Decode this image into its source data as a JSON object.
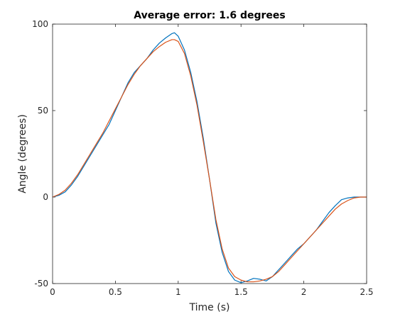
{
  "chart_data": {
    "type": "line",
    "title": "Average error:   1.6 degrees",
    "xlabel": "Time (s)",
    "ylabel": "Angle (degrees)",
    "xlim": [
      0,
      2.5
    ],
    "ylim": [
      -50,
      100
    ],
    "xticks": [
      0,
      0.5,
      1,
      1.5,
      2,
      2.5
    ],
    "xtick_labels": [
      "0",
      "0.5",
      "1",
      "1.5",
      "2",
      "2.5"
    ],
    "yticks": [
      -50,
      0,
      50,
      100
    ],
    "ytick_labels": [
      "-50",
      "0",
      "50",
      "100"
    ],
    "grid": false,
    "series": [
      {
        "color": "#0072BD",
        "x": [
          0,
          0.05,
          0.1,
          0.15,
          0.2,
          0.25,
          0.3,
          0.35,
          0.4,
          0.45,
          0.5,
          0.55,
          0.6,
          0.65,
          0.7,
          0.75,
          0.8,
          0.85,
          0.9,
          0.95,
          0.97,
          1.0,
          1.05,
          1.1,
          1.15,
          1.2,
          1.25,
          1.3,
          1.35,
          1.4,
          1.45,
          1.5,
          1.55,
          1.6,
          1.65,
          1.7,
          1.75,
          1.8,
          1.85,
          1.9,
          1.95,
          2.0,
          2.05,
          2.1,
          2.15,
          2.2,
          2.25,
          2.3,
          2.35,
          2.4,
          2.45,
          2.5
        ],
        "y": [
          0,
          1,
          3,
          7,
          12,
          18,
          24,
          30,
          36,
          42,
          50,
          58,
          66,
          72,
          76,
          80,
          85,
          89,
          92,
          94.5,
          95,
          93,
          85,
          72,
          55,
          34,
          10,
          -15,
          -32,
          -43,
          -48,
          -49.5,
          -48.5,
          -47,
          -47.5,
          -48.5,
          -46,
          -42,
          -38,
          -34,
          -30,
          -27,
          -23,
          -19,
          -14,
          -9,
          -5,
          -1.5,
          -0.5,
          0,
          0,
          0
        ]
      },
      {
        "color": "#D95319",
        "x": [
          0,
          0.05,
          0.1,
          0.15,
          0.2,
          0.25,
          0.3,
          0.35,
          0.4,
          0.45,
          0.5,
          0.55,
          0.6,
          0.65,
          0.7,
          0.75,
          0.8,
          0.85,
          0.9,
          0.95,
          0.97,
          1.0,
          1.05,
          1.1,
          1.15,
          1.2,
          1.25,
          1.3,
          1.35,
          1.4,
          1.45,
          1.5,
          1.55,
          1.6,
          1.65,
          1.7,
          1.75,
          1.8,
          1.85,
          1.9,
          1.95,
          2.0,
          2.05,
          2.1,
          2.15,
          2.2,
          2.25,
          2.3,
          2.35,
          2.4,
          2.45,
          2.5
        ],
        "y": [
          0,
          1.5,
          4,
          8,
          13,
          19,
          25,
          31,
          37,
          44,
          51,
          58,
          65,
          71,
          76,
          80,
          84,
          87,
          89.5,
          91,
          91,
          90,
          83,
          70,
          53,
          32,
          10,
          -13,
          -30,
          -41,
          -46,
          -48,
          -49,
          -49,
          -48.5,
          -47.5,
          -46,
          -43,
          -39,
          -35,
          -31,
          -27,
          -23,
          -19,
          -15,
          -11,
          -7,
          -4,
          -2,
          -0.5,
          0,
          0
        ]
      }
    ]
  }
}
